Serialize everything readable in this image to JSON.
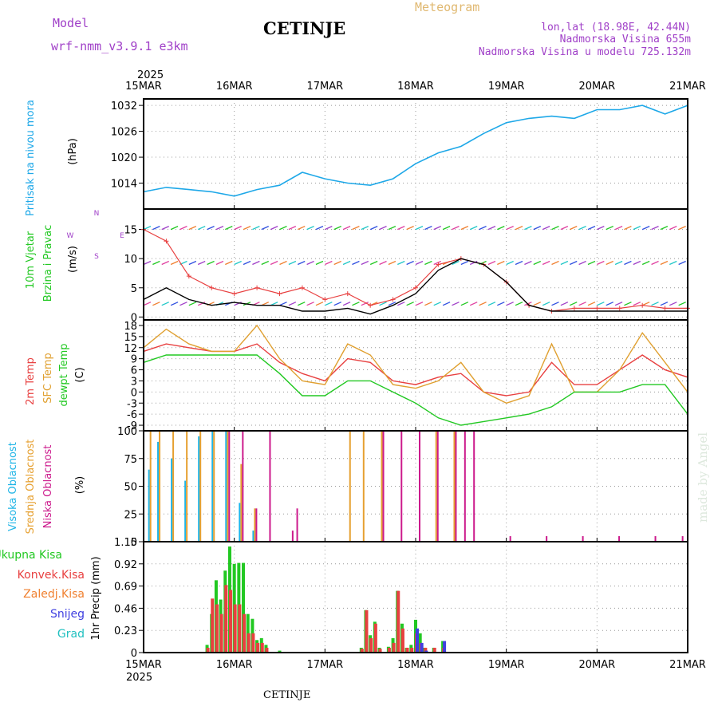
{
  "header": {
    "model_label": "Model",
    "model_name": "wrf-nmm_v3.9.1 e3km",
    "station": "CETINJE",
    "meteogram_label": "Meteogram",
    "lonlat": "lon,lat (18.98E, 42.44N)",
    "altitude": "Nadmorska Visina 655m",
    "model_altitude": "Nadmorska Visina u modelu 725.132m",
    "watermark": "made by Angel",
    "footer_station": "CETINJE"
  },
  "colors": {
    "pressure": "#1ea8e8",
    "wind_speed": "#000000",
    "gust": "#e84040",
    "temp2m": "#e84040",
    "sfc": "#e0a030",
    "dew": "#22c822",
    "visoka": "#1eb4e6",
    "srednja": "#e6a030",
    "niska": "#cc1a8c",
    "ukupna": "#22c822",
    "konvek": "#e84040",
    "zaledj": "#f08030",
    "snijeg": "#4040e0",
    "grad": "#20c0c0"
  },
  "chart_data": [
    {
      "type": "line",
      "panel": "pressure",
      "title": "Pritisak na nivou mora",
      "ylabel": "(hPa)",
      "year": "2025",
      "x_ticks": [
        "15MAR",
        "16MAR",
        "17MAR",
        "18MAR",
        "19MAR",
        "20MAR",
        "21MAR"
      ],
      "y_ticks": [
        1014,
        1020,
        1026,
        1032
      ],
      "ylim": [
        1008,
        1033.5
      ],
      "x": [
        0,
        0.25,
        0.5,
        0.75,
        1,
        1.25,
        1.5,
        1.75,
        2,
        2.25,
        2.5,
        2.75,
        3,
        3.25,
        3.5,
        3.75,
        4,
        4.25,
        4.5,
        4.75,
        5,
        5.25,
        5.5,
        5.75,
        6
      ],
      "values": [
        1012,
        1013,
        1012.5,
        1012,
        1011,
        1012.5,
        1013.5,
        1016.5,
        1015,
        1014,
        1013.5,
        1015,
        1018.5,
        1021,
        1022.5,
        1025.5,
        1028,
        1029,
        1029.5,
        1029,
        1031,
        1031,
        1032,
        1030,
        1032
      ]
    },
    {
      "type": "line",
      "panel": "wind",
      "title": "10m Vjetar",
      "subtitle": "Brzina i Pravac",
      "ylabel": "(m/s)",
      "compass": [
        "N",
        "E",
        "S",
        "W"
      ],
      "y_ticks": [
        0,
        5,
        10,
        15
      ],
      "ylim": [
        -0.5,
        18.5
      ],
      "x": [
        0,
        0.25,
        0.5,
        0.75,
        1,
        1.25,
        1.5,
        1.75,
        2,
        2.25,
        2.5,
        2.75,
        3,
        3.25,
        3.5,
        3.75,
        4,
        4.25,
        4.5,
        4.75,
        5,
        5.25,
        5.5,
        5.75,
        6
      ],
      "series": [
        {
          "name": "speed",
          "values": [
            3,
            5,
            3,
            2,
            2.5,
            2,
            2,
            1,
            1,
            1.5,
            0.5,
            2,
            4,
            8,
            10,
            9,
            6,
            2,
            1,
            1,
            1,
            1,
            1,
            1,
            1
          ]
        },
        {
          "name": "gust",
          "values": [
            15,
            13,
            7,
            5,
            4,
            5,
            4,
            5,
            3,
            4,
            2,
            3,
            5,
            9,
            10,
            9,
            6,
            2,
            1,
            1.5,
            1.5,
            1.5,
            2,
            1.5,
            1.5
          ]
        }
      ]
    },
    {
      "type": "line",
      "panel": "temperature",
      "titles": [
        "2m Temp",
        "SFC Temp",
        "dewpt Temp"
      ],
      "ylabel": "(C)",
      "y_ticks": [
        -9,
        -6,
        -3,
        0,
        3,
        6,
        9,
        12,
        15,
        18
      ],
      "ylim": [
        -10.5,
        19.5
      ],
      "x": [
        0,
        0.25,
        0.5,
        0.75,
        1,
        1.25,
        1.5,
        1.75,
        2,
        2.25,
        2.5,
        2.75,
        3,
        3.25,
        3.5,
        3.75,
        4,
        4.25,
        4.5,
        4.75,
        5,
        5.25,
        5.5,
        5.75,
        6
      ],
      "series": [
        {
          "name": "2m Temp",
          "values": [
            11,
            13,
            12,
            11,
            11,
            13,
            8,
            5,
            3,
            9,
            8,
            3,
            2,
            4,
            5,
            0,
            -1,
            0,
            8,
            2,
            2,
            6,
            10,
            6,
            4
          ]
        },
        {
          "name": "SFC Temp",
          "values": [
            12,
            17,
            13,
            11,
            11,
            18,
            9,
            3,
            2,
            13,
            10,
            2,
            1,
            3,
            8,
            0,
            -3,
            -1,
            13,
            0,
            0,
            6,
            16,
            8,
            0
          ]
        },
        {
          "name": "dewpt Temp",
          "values": [
            8,
            10,
            10,
            10,
            10,
            10,
            5,
            -1,
            -1,
            3,
            3,
            0,
            -3,
            -7,
            -9,
            -8,
            -7,
            -6,
            -4,
            0,
            0,
            0,
            2,
            2,
            -6
          ]
        }
      ]
    },
    {
      "type": "bar",
      "panel": "cloud",
      "titles": [
        "Visoka Oblacnost",
        "Srednja Oblacnost",
        "Niska Oblacnost"
      ],
      "ylabel": "(%)",
      "y_ticks": [
        0,
        25,
        50,
        75,
        100
      ],
      "ylim": [
        0,
        100
      ],
      "x": [
        0.05,
        0.15,
        0.3,
        0.45,
        0.6,
        0.75,
        0.9,
        1.05,
        1.2,
        1.35,
        1.6,
        1.65,
        2.0,
        2.25,
        2.4,
        2.6,
        2.8,
        3.0,
        3.2,
        3.4,
        3.5,
        3.6,
        4.0,
        4.4,
        4.8,
        5.2,
        5.6,
        5.9
      ],
      "series": [
        {
          "name": "Visoka",
          "values": [
            65,
            90,
            75,
            55,
            95,
            100,
            100,
            35,
            10,
            0,
            0,
            0,
            0,
            0,
            0,
            0,
            0,
            0,
            0,
            0,
            0,
            0,
            0,
            0,
            0,
            0,
            0,
            0
          ]
        },
        {
          "name": "Srednja",
          "values": [
            100,
            100,
            100,
            100,
            100,
            100,
            100,
            70,
            30,
            0,
            0,
            0,
            0,
            100,
            100,
            100,
            0,
            0,
            100,
            100,
            0,
            0,
            0,
            0,
            0,
            0,
            0,
            0
          ]
        },
        {
          "name": "Niska",
          "values": [
            0,
            0,
            0,
            0,
            0,
            0,
            100,
            100,
            30,
            100,
            10,
            30,
            0,
            0,
            0,
            100,
            100,
            100,
            100,
            100,
            100,
            100,
            5,
            5,
            5,
            5,
            5,
            5
          ]
        }
      ]
    },
    {
      "type": "bar",
      "panel": "precip",
      "titles": [
        "Ukupna Kisa",
        "Konvek.Kisa",
        "Zaledj.Kisa",
        "Snijeg",
        "Grad"
      ],
      "ylabel": "1hr Precip (mm)",
      "y_ticks": [
        0,
        0.23,
        0.46,
        0.69,
        0.92,
        1.15
      ],
      "ylim": [
        0,
        1.15
      ],
      "x": [
        0.7,
        0.75,
        0.8,
        0.85,
        0.9,
        0.95,
        1.0,
        1.05,
        1.1,
        1.15,
        1.2,
        1.25,
        1.3,
        1.35,
        1.5,
        2.4,
        2.45,
        2.5,
        2.55,
        2.6,
        2.7,
        2.75,
        2.8,
        2.85,
        2.9,
        2.95,
        3.0,
        3.05,
        3.1,
        3.2,
        3.3
      ],
      "series": [
        {
          "name": "Ukupna Kisa",
          "values": [
            0.08,
            0.4,
            0.75,
            0.55,
            0.85,
            1.1,
            0.92,
            0.93,
            0.93,
            0.4,
            0.35,
            0.13,
            0.15,
            0.08,
            0.02,
            0.05,
            0.44,
            0.18,
            0.32,
            0.05,
            0.06,
            0.15,
            0.64,
            0.3,
            0.05,
            0.08,
            0.34,
            0.2,
            0.05,
            0.05,
            0.12
          ]
        },
        {
          "name": "Konvek.Kisa",
          "values": [
            0.05,
            0.56,
            0.5,
            0.4,
            0.7,
            0.65,
            0.5,
            0.5,
            0.4,
            0.2,
            0.2,
            0.1,
            0.1,
            0.05,
            0,
            0.04,
            0.44,
            0.15,
            0.3,
            0.04,
            0.05,
            0.1,
            0.64,
            0.25,
            0.05,
            0.05,
            0.2,
            0.1,
            0.05,
            0.05,
            0.05
          ]
        },
        {
          "name": "Snijeg",
          "values": [
            0,
            0,
            0,
            0,
            0,
            0,
            0,
            0,
            0,
            0,
            0,
            0,
            0,
            0,
            0,
            0,
            0,
            0,
            0,
            0,
            0,
            0,
            0,
            0,
            0,
            0,
            0.25,
            0.1,
            0.02,
            0,
            0.12
          ]
        }
      ]
    }
  ]
}
